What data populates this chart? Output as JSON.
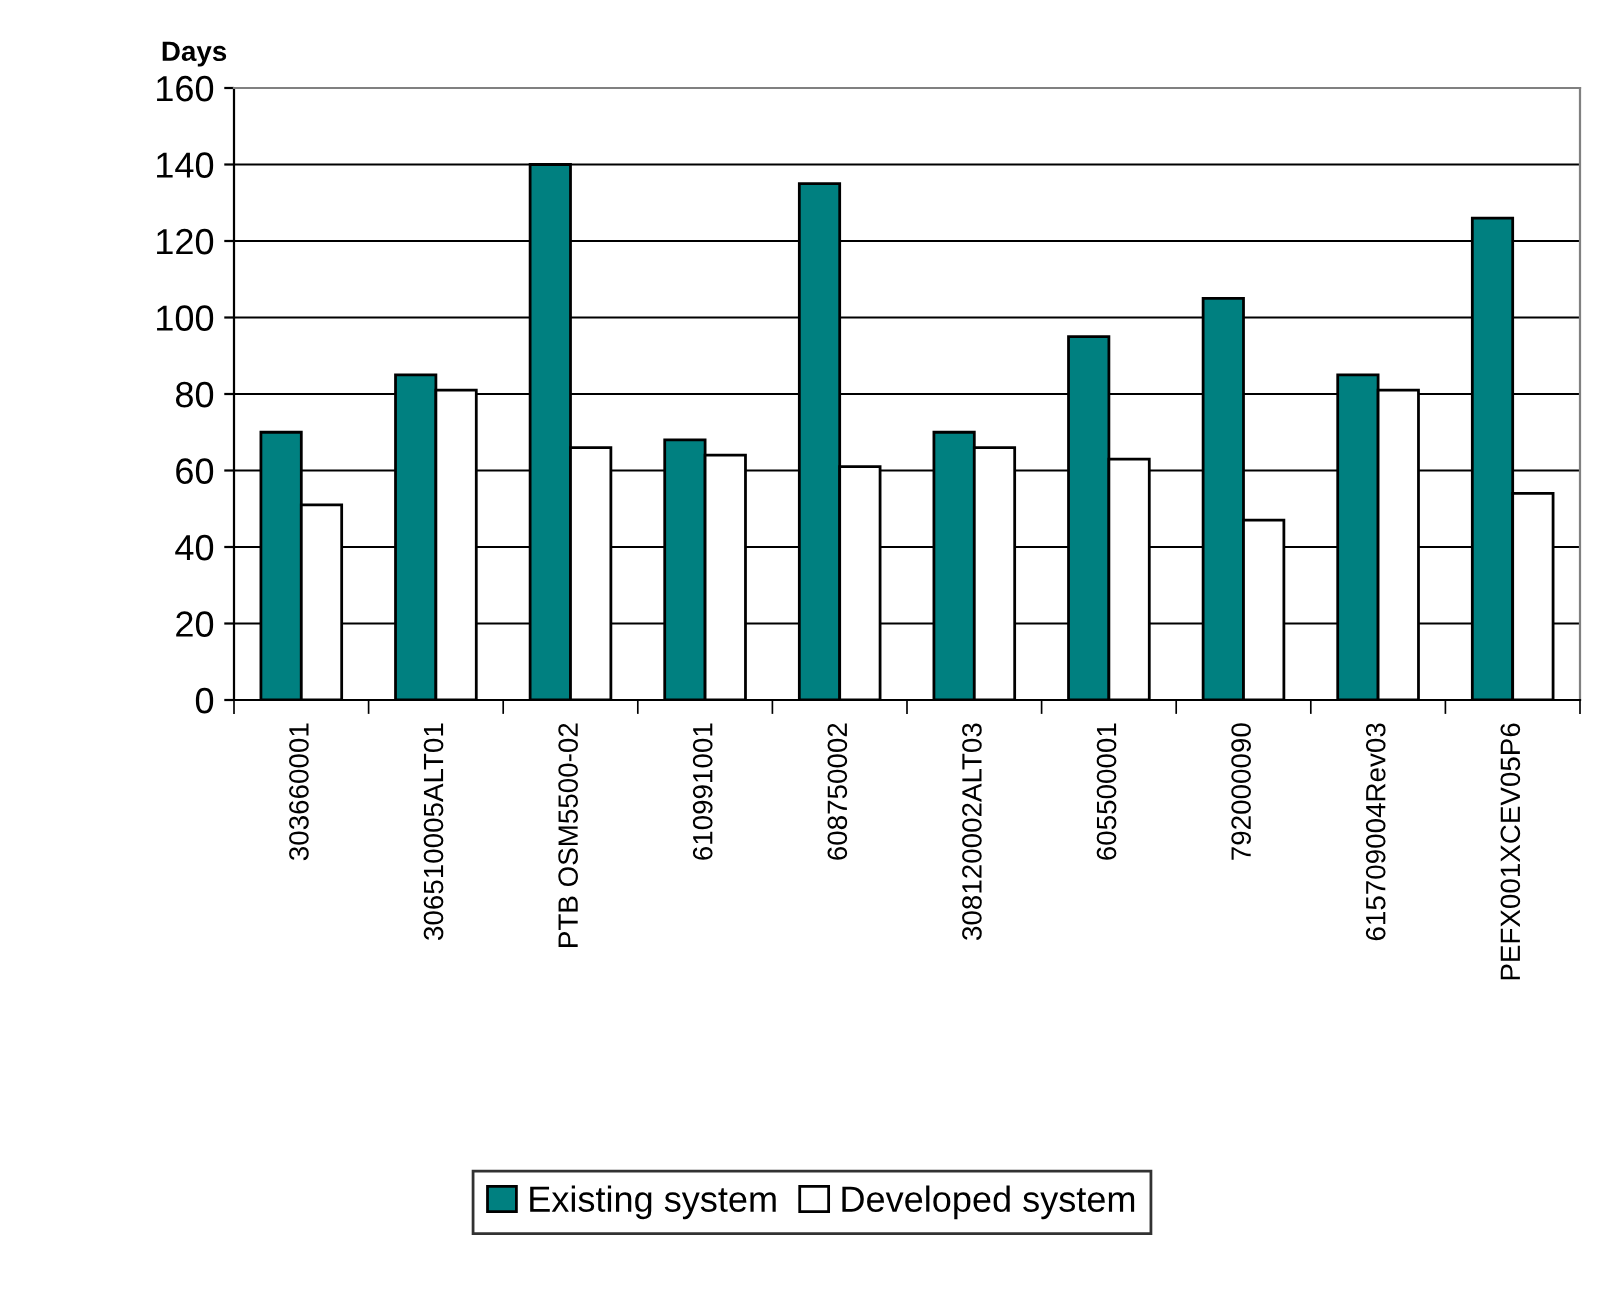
{
  "chart_data": {
    "type": "bar",
    "ylabel": "Days",
    "categories": [
      "303660001",
      "306510005ALT01",
      "PTB OSM5500-02",
      "610991001",
      "608750002",
      "308120002ALT03",
      "605500001",
      "792000090",
      "615709004Rev03",
      "PEFX001XCEV05P6"
    ],
    "series": [
      {
        "name": "Existing system",
        "color": "#008080",
        "values": [
          70,
          85,
          140,
          68,
          135,
          70,
          95,
          105,
          85,
          126
        ]
      },
      {
        "name": "Developed system",
        "color": "#ffffff",
        "values": [
          51,
          81,
          66,
          64,
          61,
          66,
          63,
          47,
          81,
          54
        ]
      }
    ],
    "ylim": [
      0,
      160
    ],
    "yticks": [
      0,
      20,
      40,
      60,
      80,
      100,
      120,
      140,
      160
    ],
    "grid": "y",
    "legend": "bottom"
  }
}
